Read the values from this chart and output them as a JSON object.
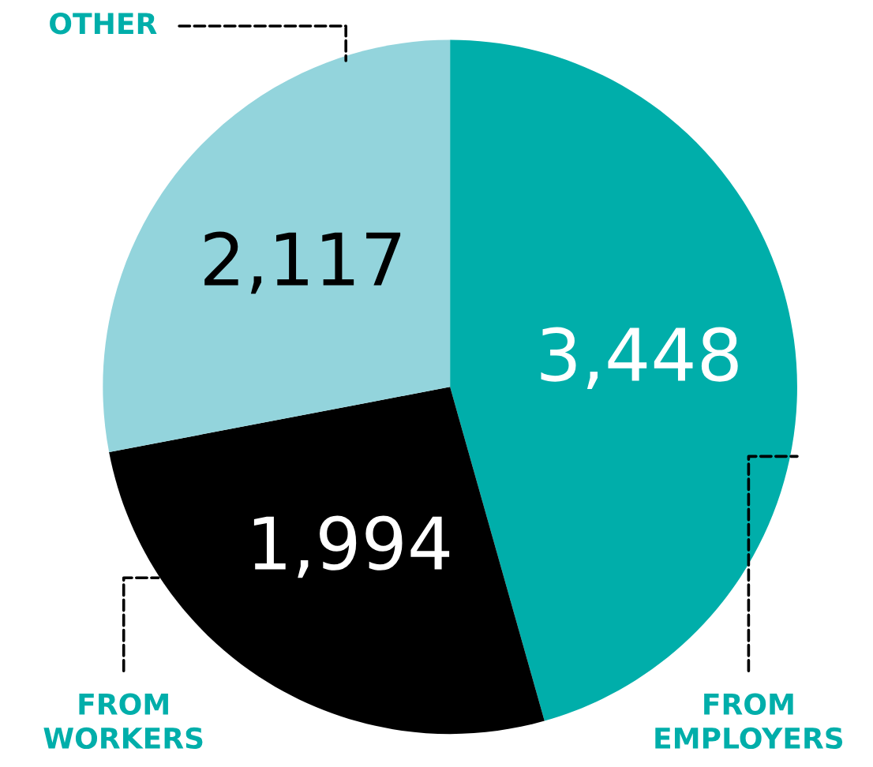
{
  "chart_data": {
    "type": "pie",
    "categories": [
      "FROM\nEMPLOYERS",
      "FROM\nWORKERS",
      "OTHER"
    ],
    "values": [
      3448,
      1994,
      2117
    ],
    "colors": [
      "#00aeaa",
      "#000000",
      "#93d4dc"
    ],
    "value_labels": [
      "3,448",
      "1,994",
      "2,117"
    ],
    "legend": false
  }
}
